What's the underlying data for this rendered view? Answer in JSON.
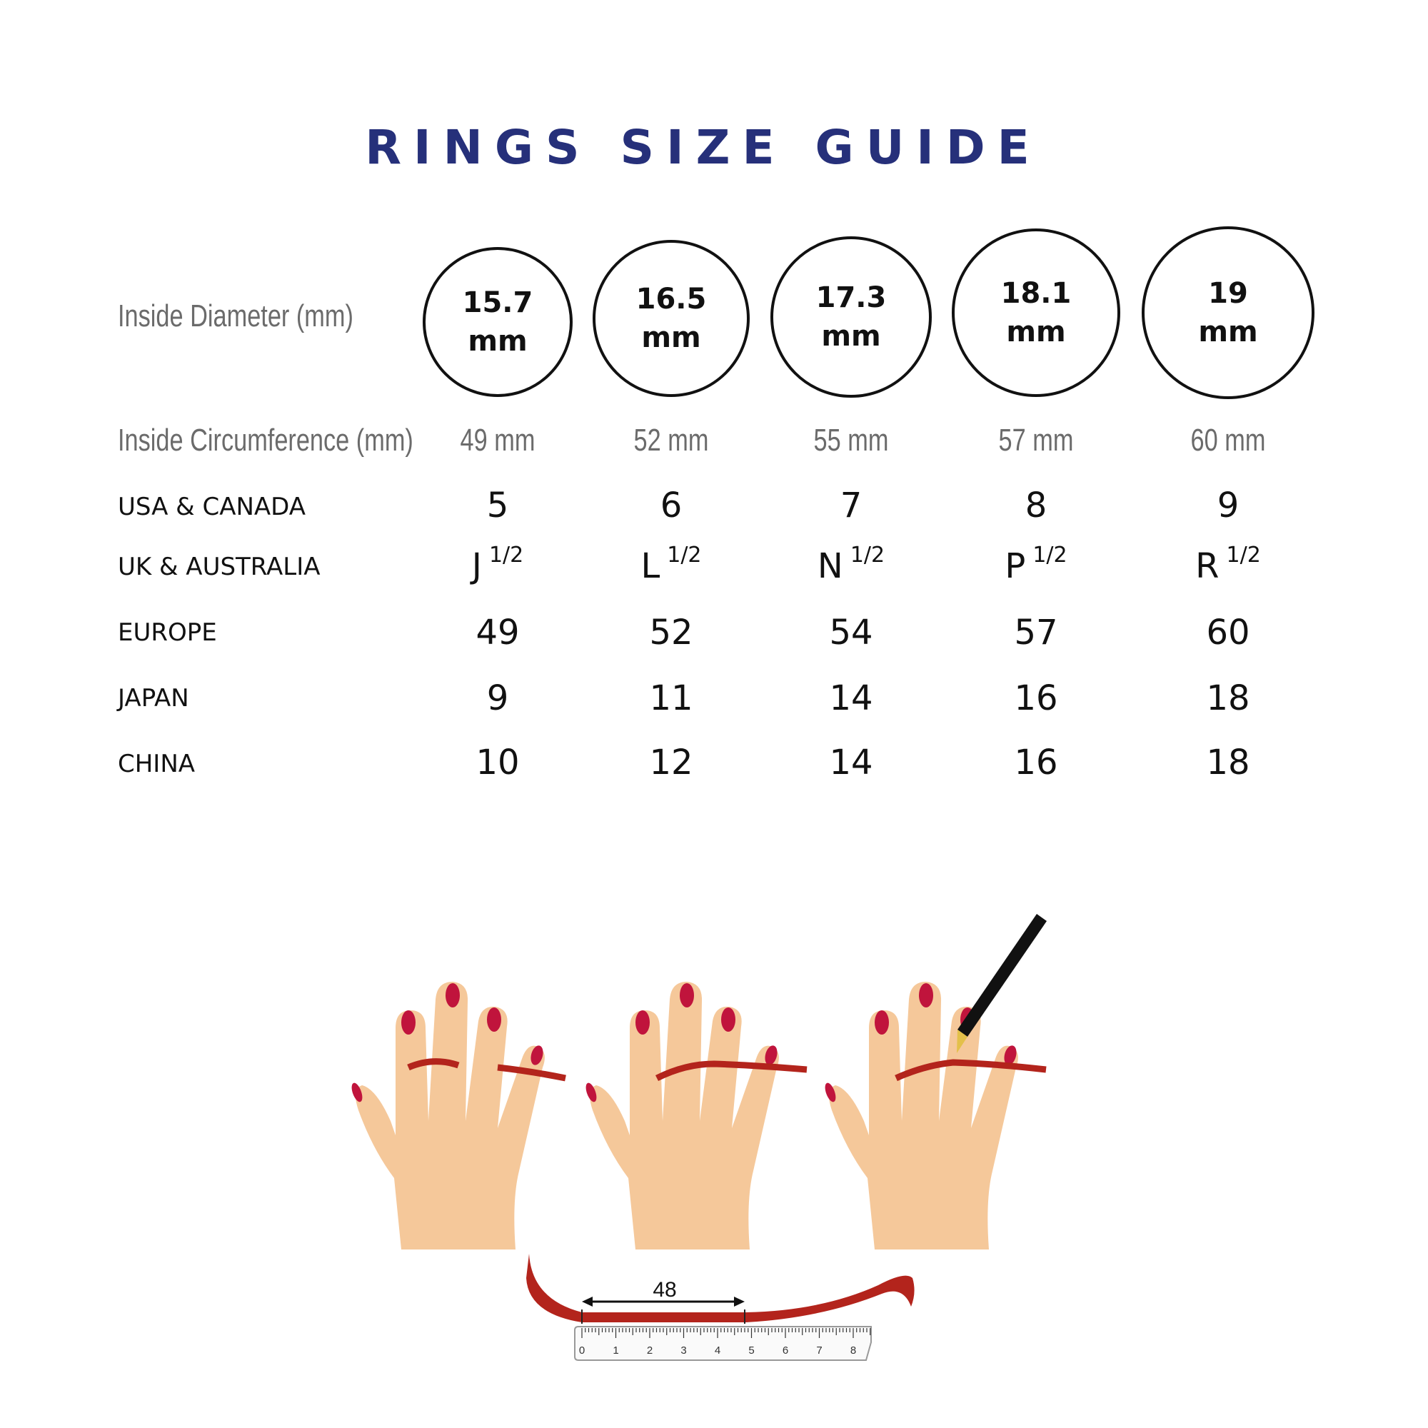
{
  "title": "RINGS SIZE GUIDE",
  "rows": {
    "diameter_label": "Inside Diameter (mm)",
    "circumference_label": "Inside Circumference (mm)",
    "usa_label": "USA & CANADA",
    "uk_label": "UK & AUSTRALIA",
    "europe_label": "EUROPE",
    "japan_label": "JAPAN",
    "china_label": "CHINA"
  },
  "sizes": [
    {
      "diameter": "15.7",
      "unit": "mm",
      "circumference": "49 mm",
      "usa": "5",
      "uk": "J",
      "uk_frac": "1/2",
      "europe": "49",
      "japan": "9",
      "china": "10"
    },
    {
      "diameter": "16.5",
      "unit": "mm",
      "circumference": "52 mm",
      "usa": "6",
      "uk": "L",
      "uk_frac": "1/2",
      "europe": "52",
      "japan": "11",
      "china": "12"
    },
    {
      "diameter": "17.3",
      "unit": "mm",
      "circumference": "55 mm",
      "usa": "7",
      "uk": "N",
      "uk_frac": "1/2",
      "europe": "54",
      "japan": "14",
      "china": "14"
    },
    {
      "diameter": "18.1",
      "unit": "mm",
      "circumference": "57 mm",
      "usa": "8",
      "uk": "P",
      "uk_frac": "1/2",
      "europe": "57",
      "japan": "16",
      "china": "16"
    },
    {
      "diameter": "19",
      "unit": "mm",
      "circumference": "60 mm",
      "usa": "9",
      "uk": "R",
      "uk_frac": "1/2",
      "europe": "60",
      "japan": "18",
      "china": "18"
    }
  ],
  "illustration": {
    "measure_label": "48",
    "ruler_labels": [
      "0",
      "1",
      "2",
      "3",
      "4",
      "5",
      "6",
      "7",
      "8"
    ],
    "colors": {
      "skin": "#f5c89a",
      "nail": "#c0143c",
      "string": "#b3241c",
      "title": "#26307a"
    }
  }
}
